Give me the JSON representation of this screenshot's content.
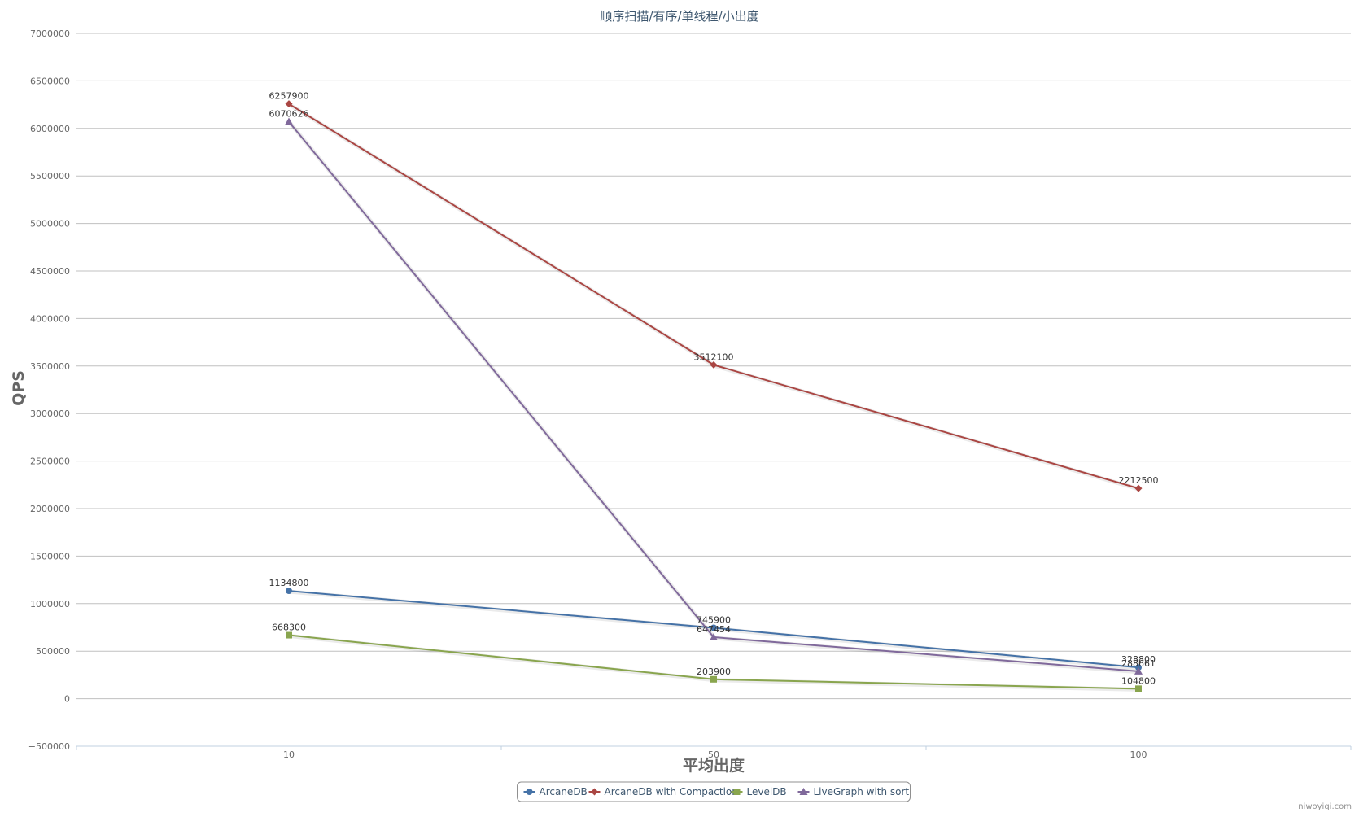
{
  "chart_data": {
    "type": "line",
    "title": "顺序扫描/有序/单线程/小出度",
    "xlabel": "平均出度",
    "ylabel": "QPS",
    "categories": [
      "10",
      "50",
      "100"
    ],
    "ylim": [
      -500000,
      7000000
    ],
    "ytick_step": 500000,
    "grid": "horizontal",
    "legend_position": "bottom-center",
    "series": [
      {
        "name": "ArcaneDB",
        "color": "#4572A7",
        "marker": "circle",
        "values": [
          1134800,
          745900,
          328800
        ]
      },
      {
        "name": "ArcaneDB with Compaction",
        "color": "#AA4643",
        "marker": "diamond",
        "values": [
          6257900,
          3512100,
          2212500
        ]
      },
      {
        "name": "LevelDB",
        "color": "#89A54E",
        "marker": "square",
        "values": [
          668300,
          203900,
          104800
        ]
      },
      {
        "name": "LiveGraph with sort",
        "color": "#80699B",
        "marker": "triangle",
        "values": [
          6070626,
          647454,
          288661
        ]
      }
    ]
  },
  "credit": "niwoyiqi.com"
}
